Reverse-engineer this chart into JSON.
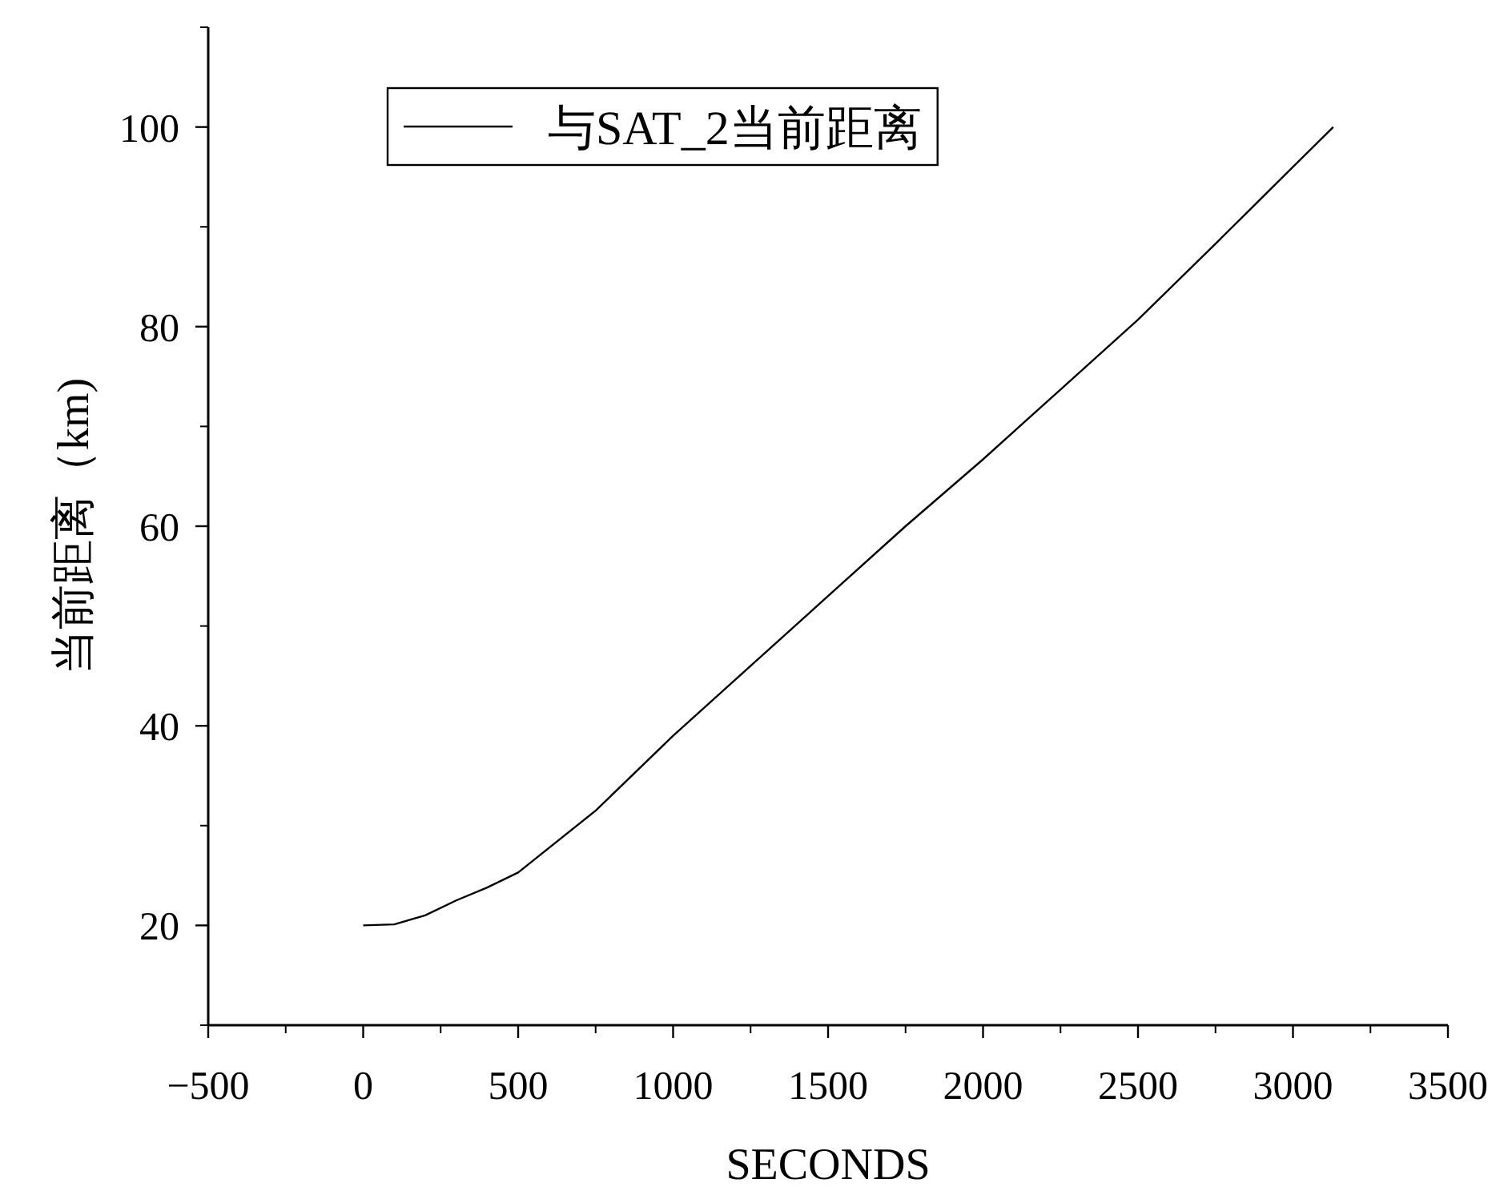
{
  "chart_data": {
    "type": "line",
    "xlabel": "SECONDS",
    "ylabel": "当前距离（km)",
    "x": [
      0,
      100,
      200,
      300,
      400,
      500,
      750,
      1000,
      1250,
      1500,
      1750,
      2000,
      2250,
      2500,
      2750,
      3000,
      3130
    ],
    "series": [
      {
        "name": "与SAT_2当前距离",
        "color": "#000000",
        "values": [
          20,
          20.1,
          21,
          22.5,
          23.8,
          25.3,
          31.5,
          39,
          46,
          53,
          60,
          66.7,
          73.7,
          80.7,
          88.3,
          96,
          100
        ]
      }
    ],
    "xlim": [
      -500,
      3500
    ],
    "ylim": [
      10,
      110
    ],
    "xticks": [
      {
        "value": -500,
        "label": "−500"
      },
      0,
      500,
      1000,
      1500,
      2000,
      2500,
      3000,
      3500
    ],
    "yticks": [
      20,
      40,
      60,
      80,
      100
    ],
    "legend": "top"
  }
}
